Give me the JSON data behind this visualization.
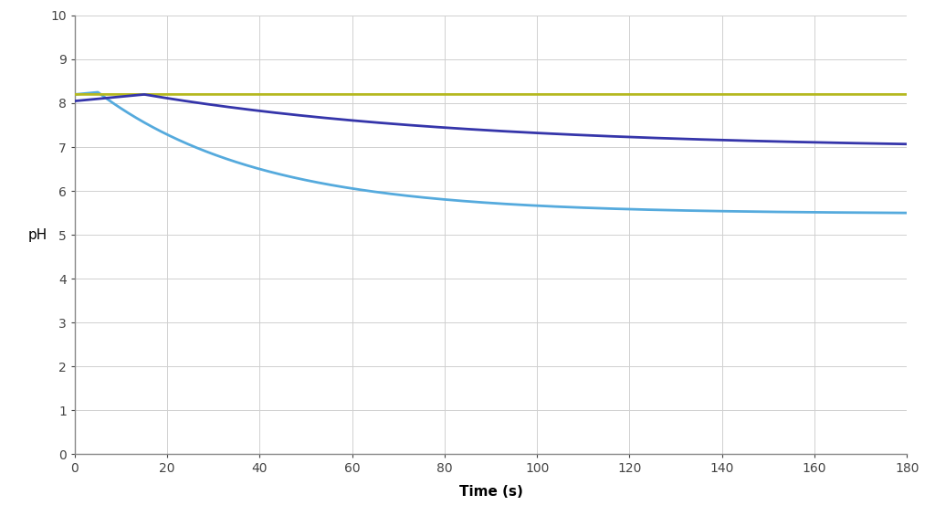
{
  "title": "",
  "xlabel": "Time (s)",
  "ylabel": "pH",
  "xlim": [
    0,
    180
  ],
  "ylim": [
    0,
    10
  ],
  "xticks": [
    0,
    20,
    40,
    60,
    80,
    100,
    120,
    140,
    160,
    180
  ],
  "yticks": [
    0,
    1,
    2,
    3,
    4,
    5,
    6,
    7,
    8,
    9,
    10
  ],
  "background_color": "#ffffff",
  "grid_color": "#d0d0d0",
  "line1_color": "#b5b820",
  "line2_color": "#3535aa",
  "line3_color": "#55aadd",
  "line1_y": 8.2,
  "line2_start": 8.05,
  "line2_peak": 8.2,
  "line2_peak_t": 15,
  "line2_end": 6.95,
  "line2_tau": 70,
  "line3_start": 8.2,
  "line3_peak": 8.25,
  "line3_peak_t": 5,
  "line3_end": 5.48,
  "line3_tau": 35,
  "line_width": 2.0
}
